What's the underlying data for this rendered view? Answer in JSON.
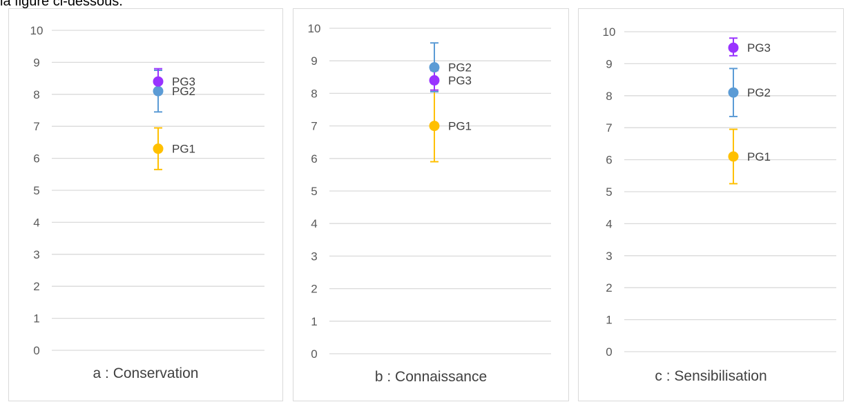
{
  "page": {
    "top_text": "la figure ci-dessous."
  },
  "colors": {
    "PG1": "#ffc000",
    "PG2": "#5b9bd5",
    "PG3": "#9933ff",
    "grid": "#d9d9d9",
    "border": "#d9d9d9"
  },
  "chart_data": [
    {
      "type": "scatter",
      "caption": "a : Conservation",
      "ylim": [
        0,
        10
      ],
      "yticks": [
        "0",
        "1",
        "2",
        "3",
        "4",
        "5",
        "6",
        "7",
        "8",
        "9",
        "10"
      ],
      "grid": true,
      "points": [
        {
          "name": "PG1",
          "value": 6.3,
          "err_low": 5.65,
          "err_high": 6.95
        },
        {
          "name": "PG2",
          "value": 8.1,
          "err_low": 7.45,
          "err_high": 8.75
        },
        {
          "name": "PG3",
          "value": 8.4,
          "err_low": 8.05,
          "err_high": 8.8
        }
      ]
    },
    {
      "type": "scatter",
      "caption": "b : Connaissance",
      "ylim": [
        0,
        10
      ],
      "yticks": [
        "0",
        "1",
        "2",
        "3",
        "4",
        "5",
        "6",
        "7",
        "8",
        "9",
        "10"
      ],
      "grid": true,
      "points": [
        {
          "name": "PG1",
          "value": 7.0,
          "err_low": 5.9,
          "err_high": 8.1
        },
        {
          "name": "PG2",
          "value": 8.8,
          "err_low": 8.05,
          "err_high": 9.55
        },
        {
          "name": "PG3",
          "value": 8.4,
          "err_low": 8.1,
          "err_high": 8.7
        }
      ]
    },
    {
      "type": "scatter",
      "caption": "c : Sensibilisation",
      "ylim": [
        0,
        10
      ],
      "yticks": [
        "0",
        "1",
        "2",
        "3",
        "4",
        "5",
        "6",
        "7",
        "8",
        "9",
        "10"
      ],
      "grid": true,
      "points": [
        {
          "name": "PG1",
          "value": 6.1,
          "err_low": 5.25,
          "err_high": 6.95
        },
        {
          "name": "PG2",
          "value": 8.1,
          "err_low": 7.35,
          "err_high": 8.85
        },
        {
          "name": "PG3",
          "value": 9.5,
          "err_low": 9.25,
          "err_high": 9.8
        }
      ]
    }
  ]
}
